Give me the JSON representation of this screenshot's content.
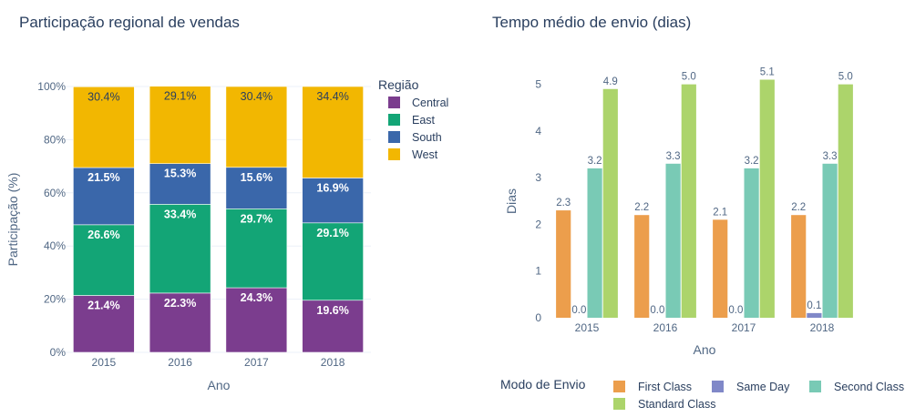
{
  "chart_data": [
    {
      "type": "bar",
      "stacked": true,
      "title": "Participação regional de vendas",
      "xlabel": "Ano",
      "ylabel": "Participação (%)",
      "ylim": [
        0,
        100
      ],
      "y_ticks": [
        "0%",
        "20%",
        "40%",
        "60%",
        "80%",
        "100%"
      ],
      "categories": [
        "2015",
        "2016",
        "2017",
        "2018"
      ],
      "legend": {
        "title": "Região",
        "placement": "right"
      },
      "series": [
        {
          "name": "Central",
          "color": "#7b3d8e",
          "values": [
            21.4,
            22.3,
            24.3,
            19.6
          ],
          "labels": [
            "21.4%",
            "22.3%",
            "24.3%",
            "19.6%"
          ]
        },
        {
          "name": "East",
          "color": "#13a576",
          "values": [
            26.6,
            33.4,
            29.7,
            29.1
          ],
          "labels": [
            "26.6%",
            "33.4%",
            "29.7%",
            "29.1%"
          ]
        },
        {
          "name": "South",
          "color": "#3a67aa",
          "values": [
            21.5,
            15.3,
            15.6,
            16.9
          ],
          "labels": [
            "21.5%",
            "15.3%",
            "15.6%",
            "16.9%"
          ]
        },
        {
          "name": "West",
          "color": "#f2b701",
          "values": [
            30.4,
            29.1,
            30.4,
            34.4
          ],
          "labels": [
            "30.4%",
            "29.1%",
            "30.4%",
            "34.4%"
          ]
        }
      ]
    },
    {
      "type": "bar",
      "stacked": false,
      "title": "Tempo médio de envio (dias)",
      "xlabel": "Ano",
      "ylabel": "Dias",
      "ylim": [
        0,
        5.5
      ],
      "y_ticks": [
        "0",
        "1",
        "2",
        "3",
        "4",
        "5"
      ],
      "categories": [
        "2015",
        "2016",
        "2017",
        "2018"
      ],
      "legend": {
        "title": "Modo de Envio",
        "placement": "bottom"
      },
      "series": [
        {
          "name": "First Class",
          "color": "#ec9e4c",
          "values": [
            2.3,
            2.2,
            2.1,
            2.2
          ],
          "labels": [
            "2.3",
            "2.2",
            "2.1",
            "2.2"
          ]
        },
        {
          "name": "Same Day",
          "color": "#8088c8",
          "values": [
            0.0,
            0.0,
            0.0,
            0.1
          ],
          "labels": [
            "0.0",
            "0.0",
            "0.0",
            "0.1"
          ]
        },
        {
          "name": "Second Class",
          "color": "#79cab5",
          "values": [
            3.2,
            3.3,
            3.2,
            3.3
          ],
          "labels": [
            "3.2",
            "3.3",
            "3.2",
            "3.3"
          ]
        },
        {
          "name": "Standard Class",
          "color": "#acd46b",
          "values": [
            4.9,
            5.0,
            5.1,
            5.0
          ],
          "labels": [
            "4.9",
            "5.0",
            "5.1",
            "5.0"
          ]
        }
      ]
    }
  ]
}
